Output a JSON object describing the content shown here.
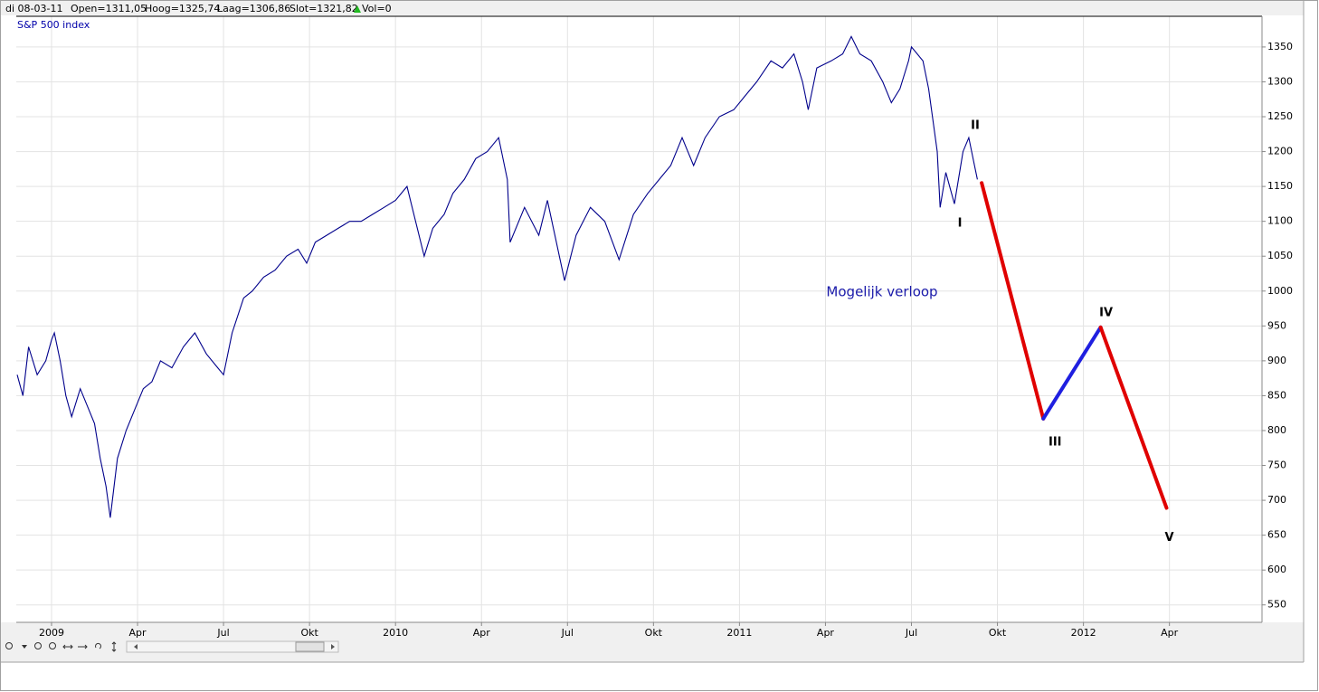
{
  "header": {
    "date": "di 08-03-11",
    "open": "Open=1311,05",
    "high": "Hoog=1325,74",
    "low": "Laag=1306,86",
    "close": "Slot=1321,82",
    "volume": "Vol=0"
  },
  "chart_data": {
    "type": "line",
    "series": [
      {
        "name": "S&P 500 index",
        "color": "#00008b",
        "x": [
          -1.2,
          -1.0,
          -0.8,
          -0.5,
          -0.2,
          0.0,
          0.1,
          0.3,
          0.5,
          0.7,
          1.0,
          1.2,
          1.5,
          1.7,
          1.9,
          2.05,
          2.3,
          2.6,
          2.9,
          3.2,
          3.5,
          3.8,
          4.2,
          4.6,
          5.0,
          5.4,
          5.8,
          6.0,
          6.3,
          6.7,
          7.0,
          7.4,
          7.8,
          8.2,
          8.6,
          8.9,
          9.2,
          9.6,
          10.0,
          10.4,
          10.8,
          11.2,
          11.6,
          12.0,
          12.4,
          12.7,
          13.0,
          13.3,
          13.7,
          14.0,
          14.4,
          14.8,
          15.2,
          15.6,
          15.9,
          16.0,
          16.5,
          17.0,
          17.3,
          17.9,
          18.3,
          18.8,
          19.3,
          19.8,
          20.3,
          20.8,
          21.2,
          21.6,
          22.0,
          22.4,
          22.8,
          23.3,
          23.8,
          24.2,
          24.6,
          25.1,
          25.5,
          25.9,
          26.2,
          26.4,
          26.7,
          27.2,
          27.6,
          27.9,
          28.2,
          28.6,
          29.0,
          29.3,
          29.6,
          29.9,
          30.0,
          30.4,
          30.6,
          30.9,
          31.0,
          31.2,
          31.5,
          31.8,
          32.0,
          32.2,
          32.3
        ],
        "values": [
          880,
          850,
          920,
          880,
          900,
          930,
          940,
          900,
          850,
          820,
          860,
          840,
          810,
          760,
          720,
          675,
          760,
          800,
          830,
          860,
          870,
          900,
          890,
          920,
          940,
          910,
          890,
          880,
          940,
          990,
          1000,
          1020,
          1030,
          1050,
          1060,
          1040,
          1070,
          1080,
          1090,
          1100,
          1100,
          1110,
          1120,
          1130,
          1150,
          1100,
          1050,
          1090,
          1110,
          1140,
          1160,
          1190,
          1200,
          1220,
          1160,
          1070,
          1120,
          1080,
          1130,
          1015,
          1080,
          1120,
          1100,
          1045,
          1110,
          1140,
          1160,
          1180,
          1220,
          1180,
          1220,
          1250,
          1260,
          1280,
          1300,
          1330,
          1320,
          1340,
          1300,
          1260,
          1320,
          1330,
          1340,
          1365,
          1340,
          1330,
          1300,
          1270,
          1290,
          1330,
          1350,
          1330,
          1290,
          1200,
          1120,
          1170,
          1125,
          1200,
          1220,
          1180,
          1160
        ]
      }
    ],
    "projection": {
      "x": [
        32.45,
        34.6,
        36.6,
        38.9
      ],
      "values": [
        1155,
        817,
        948,
        689
      ],
      "segment_colors": [
        "#e00000",
        "#1f1fe0",
        "#e00000"
      ]
    },
    "wave_labels": [
      "I",
      "II",
      "III",
      "IV",
      "V"
    ],
    "annotation": "Mogelijk verloop",
    "xlim": [
      -1.23,
      42.23
    ],
    "xticks": [
      {
        "value": 0,
        "label": "2009"
      },
      {
        "value": 3,
        "label": "Apr"
      },
      {
        "value": 6,
        "label": "Jul"
      },
      {
        "value": 9,
        "label": "Okt"
      },
      {
        "value": 12,
        "label": "2010"
      },
      {
        "value": 15,
        "label": "Apr"
      },
      {
        "value": 18,
        "label": "Jul"
      },
      {
        "value": 21,
        "label": "Okt"
      },
      {
        "value": 24,
        "label": "2011"
      },
      {
        "value": 27,
        "label": "Apr"
      },
      {
        "value": 30,
        "label": "Jul"
      },
      {
        "value": 33,
        "label": "Okt"
      },
      {
        "value": 36,
        "label": "2012"
      },
      {
        "value": 39,
        "label": "Apr"
      }
    ],
    "ylim": [
      525,
      1394
    ],
    "yticks": [
      550,
      600,
      650,
      700,
      750,
      800,
      850,
      900,
      950,
      1000,
      1050,
      1100,
      1150,
      1200,
      1250,
      1300,
      1350
    ],
    "grid": true
  }
}
